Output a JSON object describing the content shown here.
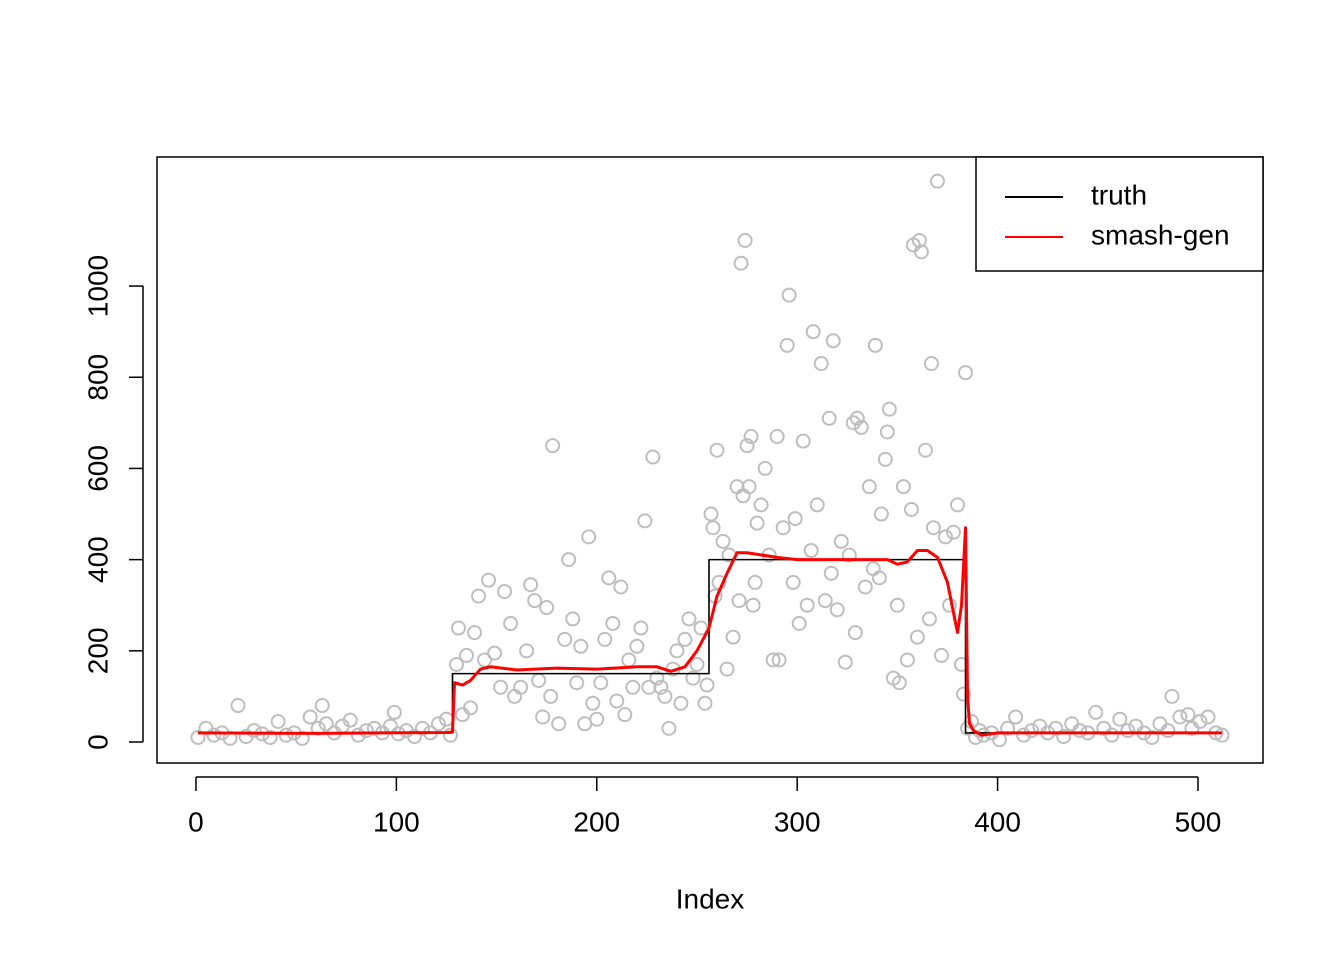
{
  "chart_data": {
    "type": "scatter",
    "xlabel": "Index",
    "xlim": [
      -19.44,
      532.44
    ],
    "ylim": [
      -46,
      1283
    ],
    "xticks": [
      0,
      100,
      200,
      300,
      400,
      500
    ],
    "yticks": [
      0,
      200,
      400,
      600,
      800,
      1000
    ],
    "legend": "topright",
    "points": {
      "color": "#bebebe",
      "x": [
        1,
        5,
        9,
        13,
        17,
        21,
        25,
        29,
        33,
        37,
        41,
        45,
        49,
        53,
        57,
        61,
        63,
        65,
        69,
        73,
        77,
        81,
        85,
        89,
        93,
        97,
        99,
        101,
        105,
        109,
        113,
        117,
        121,
        125,
        127,
        130,
        131,
        133,
        135,
        137,
        139,
        141,
        144,
        146,
        149,
        152,
        154,
        157,
        159,
        162,
        165,
        167,
        169,
        171,
        173,
        175,
        177,
        178,
        181,
        184,
        186,
        188,
        190,
        192,
        194,
        196,
        198,
        200,
        202,
        204,
        206,
        208,
        210,
        212,
        214,
        216,
        218,
        220,
        222,
        224,
        226,
        228,
        230,
        232,
        234,
        236,
        238,
        240,
        242,
        244,
        246,
        248,
        250,
        252,
        254,
        255,
        257,
        258,
        259,
        260,
        261,
        263,
        265,
        266,
        268,
        270,
        271,
        272,
        273,
        274,
        275,
        276,
        277,
        278,
        279,
        280,
        282,
        284,
        286,
        288,
        290,
        291,
        293,
        295,
        296,
        298,
        299,
        301,
        303,
        305,
        307,
        308,
        310,
        312,
        314,
        316,
        317,
        318,
        320,
        322,
        324,
        326,
        328,
        329,
        330,
        332,
        334,
        336,
        338,
        339,
        341,
        342,
        344,
        345,
        346,
        348,
        350,
        351,
        353,
        355,
        357,
        358,
        360,
        361,
        362,
        364,
        366,
        367,
        368,
        370,
        372,
        374,
        376,
        378,
        380,
        382,
        383,
        384,
        385,
        387,
        389,
        391,
        393,
        397,
        401,
        405,
        409,
        413,
        417,
        421,
        425,
        429,
        433,
        437,
        441,
        445,
        449,
        453,
        457,
        461,
        465,
        469,
        473,
        477,
        481,
        485,
        487,
        491,
        495,
        497,
        501,
        505,
        509,
        512
      ],
      "values": [
        10,
        30,
        15,
        20,
        8,
        80,
        12,
        25,
        18,
        10,
        45,
        15,
        20,
        8,
        55,
        30,
        80,
        40,
        20,
        35,
        48,
        15,
        25,
        30,
        20,
        35,
        65,
        18,
        25,
        12,
        30,
        20,
        40,
        50,
        15,
        170,
        250,
        60,
        190,
        75,
        240,
        320,
        180,
        355,
        195,
        120,
        330,
        260,
        100,
        120,
        200,
        345,
        310,
        135,
        55,
        295,
        100,
        650,
        40,
        225,
        400,
        270,
        130,
        210,
        40,
        450,
        85,
        50,
        130,
        225,
        360,
        260,
        90,
        340,
        60,
        180,
        120,
        210,
        250,
        485,
        120,
        625,
        140,
        120,
        100,
        30,
        160,
        200,
        85,
        225,
        270,
        140,
        170,
        250,
        85,
        125,
        500,
        470,
        320,
        640,
        350,
        440,
        160,
        410,
        230,
        560,
        310,
        1050,
        540,
        1100,
        650,
        560,
        670,
        300,
        350,
        480,
        520,
        600,
        410,
        180,
        670,
        180,
        470,
        870,
        980,
        350,
        490,
        260,
        660,
        300,
        420,
        900,
        520,
        830,
        310,
        710,
        370,
        880,
        290,
        440,
        175,
        410,
        700,
        240,
        710,
        690,
        340,
        560,
        380,
        870,
        360,
        500,
        620,
        680,
        730,
        140,
        300,
        130,
        560,
        180,
        510,
        1090,
        230,
        1100,
        1075,
        640,
        270,
        830,
        470,
        1230,
        190,
        450,
        300,
        460,
        520,
        170,
        105,
        810,
        30,
        45,
        10,
        25,
        15,
        20,
        5,
        30,
        55,
        15,
        25,
        35,
        20,
        30,
        12,
        40,
        25,
        20,
        65,
        30,
        15,
        50,
        25,
        35,
        20,
        10,
        40,
        25,
        100,
        55,
        60,
        30,
        45,
        55,
        20,
        15
      ]
    },
    "series": [
      {
        "name": "truth",
        "color": "#000000",
        "x": [
          1,
          128,
          128,
          256,
          256,
          384,
          384,
          512
        ],
        "values": [
          20,
          20,
          150,
          150,
          400,
          400,
          20,
          20
        ]
      },
      {
        "name": "smash-gen",
        "color": "#ff0000",
        "x": [
          1,
          60,
          125,
          128,
          129,
          133,
          137,
          142,
          147,
          160,
          180,
          200,
          220,
          230,
          237,
          244,
          250,
          256,
          260,
          265,
          270,
          275,
          290,
          300,
          330,
          345,
          350,
          355,
          360,
          365,
          370,
          375,
          380,
          382,
          384,
          385,
          386,
          388,
          392,
          400,
          512
        ],
        "values": [
          20,
          19,
          21,
          22,
          130,
          125,
          135,
          160,
          165,
          158,
          162,
          160,
          165,
          165,
          155,
          165,
          200,
          250,
          320,
          370,
          415,
          415,
          405,
          400,
          400,
          400,
          390,
          395,
          420,
          420,
          405,
          350,
          240,
          300,
          470,
          100,
          40,
          25,
          15,
          20,
          20
        ]
      }
    ]
  }
}
